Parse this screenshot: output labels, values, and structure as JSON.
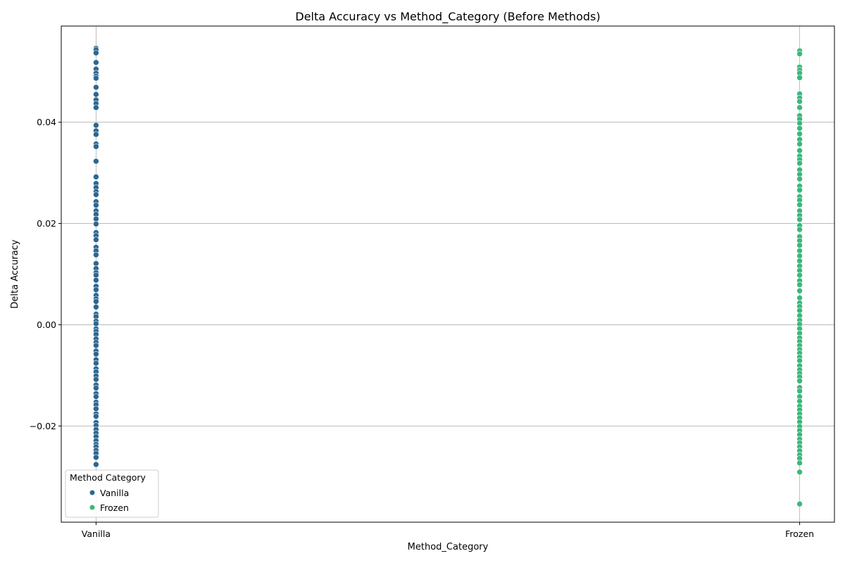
{
  "chart_data": {
    "type": "scatter",
    "title": "Delta Accuracy vs Method_Category (Before Methods)",
    "xlabel": "Method_Category",
    "ylabel": "Delta Accuracy",
    "categories": [
      "Vanilla",
      "Frozen"
    ],
    "ylim": [
      -0.039,
      0.059
    ],
    "yticks": [
      -0.02,
      0.0,
      0.02,
      0.04
    ],
    "ytick_labels": [
      "−0.02",
      "0.00",
      "0.02",
      "0.04"
    ],
    "grid": true,
    "legend": {
      "title": "Method Category",
      "placement": "lower-left"
    },
    "series": [
      {
        "name": "Vanilla",
        "color": "#2c6792",
        "category": "Vanilla",
        "values": [
          0.0546,
          0.0543,
          0.0537,
          0.0518,
          0.0505,
          0.0497,
          0.0491,
          0.0487,
          0.0469,
          0.0455,
          0.0444,
          0.0437,
          0.0429,
          0.0394,
          0.0383,
          0.0376,
          0.0357,
          0.0352,
          0.0323,
          0.0292,
          0.0279,
          0.0271,
          0.0263,
          0.0257,
          0.0243,
          0.0236,
          0.0225,
          0.0218,
          0.0209,
          0.0199,
          0.0182,
          0.0176,
          0.0168,
          0.0153,
          0.0146,
          0.0138,
          0.0121,
          0.0111,
          0.0103,
          0.0098,
          0.0088,
          0.0076,
          0.0069,
          0.0058,
          0.0051,
          0.0046,
          0.0035,
          0.0021,
          0.0016,
          0.0007,
          0.0002,
          -0.0008,
          -0.0013,
          -0.0019,
          -0.0028,
          -0.0035,
          -0.0041,
          -0.0052,
          -0.0058,
          -0.0069,
          -0.0076,
          -0.0087,
          -0.0093,
          -0.0101,
          -0.0108,
          -0.0119,
          -0.0125,
          -0.0136,
          -0.0142,
          -0.0153,
          -0.0158,
          -0.0166,
          -0.0176,
          -0.0181,
          -0.0193,
          -0.0199,
          -0.0207,
          -0.0214,
          -0.0221,
          -0.0229,
          -0.0236,
          -0.0241,
          -0.0248,
          -0.0254,
          -0.0262,
          -0.0276
        ]
      },
      {
        "name": "Frozen",
        "color": "#3bb87a",
        "category": "Frozen",
        "values": [
          0.0541,
          0.0535,
          0.0509,
          0.0503,
          0.0497,
          0.0488,
          0.0456,
          0.0448,
          0.0441,
          0.0429,
          0.0413,
          0.0406,
          0.0398,
          0.0388,
          0.0377,
          0.0366,
          0.0357,
          0.0344,
          0.0333,
          0.0326,
          0.0319,
          0.0306,
          0.0297,
          0.0288,
          0.0274,
          0.0266,
          0.0253,
          0.0246,
          0.0237,
          0.0225,
          0.0216,
          0.0208,
          0.0196,
          0.0188,
          0.0174,
          0.0166,
          0.0157,
          0.0146,
          0.0136,
          0.0126,
          0.0116,
          0.0107,
          0.0098,
          0.0087,
          0.0079,
          0.0067,
          0.0053,
          0.0043,
          0.0036,
          0.0028,
          0.0018,
          0.0009,
          0.0001,
          -0.0008,
          -0.0017,
          -0.0026,
          -0.0033,
          -0.0041,
          -0.0049,
          -0.0056,
          -0.0064,
          -0.0071,
          -0.0081,
          -0.0089,
          -0.0096,
          -0.0103,
          -0.0111,
          -0.0124,
          -0.0131,
          -0.0142,
          -0.0151,
          -0.0161,
          -0.0168,
          -0.0176,
          -0.0184,
          -0.0192,
          -0.0201,
          -0.0209,
          -0.0217,
          -0.0226,
          -0.0233,
          -0.0241,
          -0.0249,
          -0.0257,
          -0.0264,
          -0.0273,
          -0.0291,
          -0.0354
        ]
      }
    ]
  }
}
